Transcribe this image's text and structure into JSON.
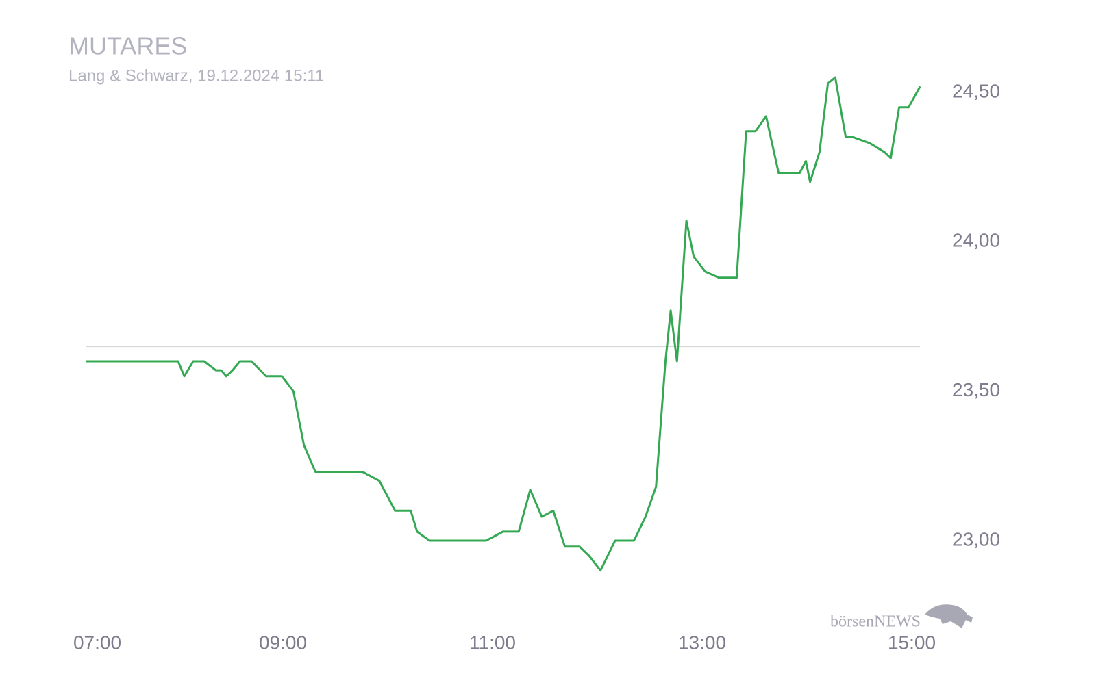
{
  "chart_data": {
    "type": "line",
    "title": "MUTARES",
    "subtitle": "Lang & Schwarz, 19.12.2024 15:11",
    "logo": "börsenNEWS",
    "x": [
      7.118,
      8.0,
      8.059,
      8.144,
      8.248,
      8.36,
      8.41,
      8.46,
      8.52,
      8.59,
      8.7,
      8.84,
      8.99,
      9.1,
      9.2,
      9.31,
      9.76,
      9.92,
      10.07,
      10.22,
      10.28,
      10.4,
      10.94,
      11.1,
      11.25,
      11.36,
      11.47,
      11.58,
      11.69,
      11.83,
      11.92,
      12.03,
      12.17,
      12.35,
      12.46,
      12.56,
      12.65,
      12.7,
      12.76,
      12.85,
      12.92,
      13.03,
      13.16,
      13.33,
      13.42,
      13.51,
      13.61,
      13.73,
      13.93,
      13.99,
      14.03,
      14.12,
      14.2,
      14.27,
      14.37,
      14.44,
      14.6,
      14.74,
      14.8,
      14.88,
      14.97,
      15.08
    ],
    "series": [
      {
        "color": "#34a853",
        "values": [
          23.6,
          23.6,
          23.55,
          23.6,
          23.6,
          23.57,
          23.57,
          23.55,
          23.57,
          23.6,
          23.6,
          23.55,
          23.55,
          23.5,
          23.32,
          23.23,
          23.23,
          23.2,
          23.1,
          23.1,
          23.03,
          23.0,
          23.0,
          23.03,
          23.03,
          23.17,
          23.08,
          23.1,
          22.98,
          22.98,
          22.95,
          22.9,
          23.0,
          23.0,
          23.08,
          23.18,
          23.6,
          23.77,
          23.6,
          24.07,
          23.95,
          23.9,
          23.88,
          23.88,
          24.37,
          24.37,
          24.42,
          24.23,
          24.23,
          24.27,
          24.2,
          24.3,
          24.53,
          24.55,
          24.35,
          24.35,
          24.33,
          24.3,
          24.28,
          24.45,
          24.45,
          24.52
        ]
      }
    ],
    "previous_close": 23.65,
    "xlim": [
      7,
      15.2
    ],
    "xticks": [
      {
        "value": 7,
        "label": "07:00"
      },
      {
        "value": 9,
        "label": "09:00"
      },
      {
        "value": 11,
        "label": "11:00"
      },
      {
        "value": 13,
        "label": "13:00"
      },
      {
        "value": 15,
        "label": "15:00"
      }
    ],
    "ylim": [
      22.8,
      24.6
    ],
    "yticks": [
      {
        "value": 23,
        "label": "23,00"
      },
      {
        "value": 23.5,
        "label": "23,50"
      },
      {
        "value": 24,
        "label": "24,00"
      },
      {
        "value": 24.5,
        "label": "24,50"
      }
    ]
  }
}
